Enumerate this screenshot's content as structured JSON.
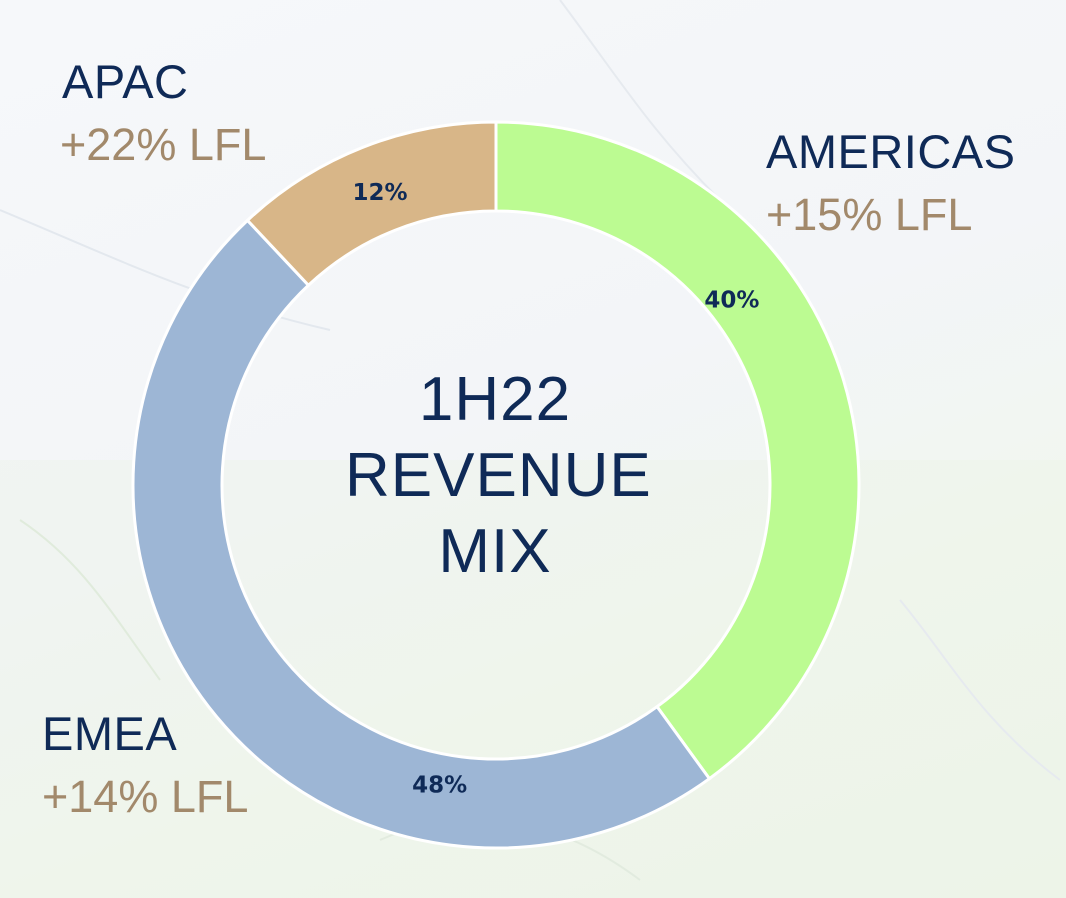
{
  "chart_data": {
    "type": "pie",
    "style": "donut",
    "center_title": [
      "1H22",
      "REVENUE",
      "MIX"
    ],
    "start_angle_deg": 0,
    "direction": "clockwise",
    "slices": [
      {
        "name": "AMERICAS",
        "value": 40,
        "label": "40%",
        "growth": "+15% LFL",
        "color": "#bcfb92"
      },
      {
        "name": "EMEA",
        "value": 48,
        "label": "48%",
        "growth": "+14% LFL",
        "color": "#9db6d5"
      },
      {
        "name": "APAC",
        "value": 12,
        "label": "12%",
        "growth": "+22% LFL",
        "color": "#d8b688"
      }
    ]
  },
  "colors": {
    "text_primary": "#0f2a57",
    "text_growth": "#a2896b",
    "separator": "#ffffff"
  }
}
